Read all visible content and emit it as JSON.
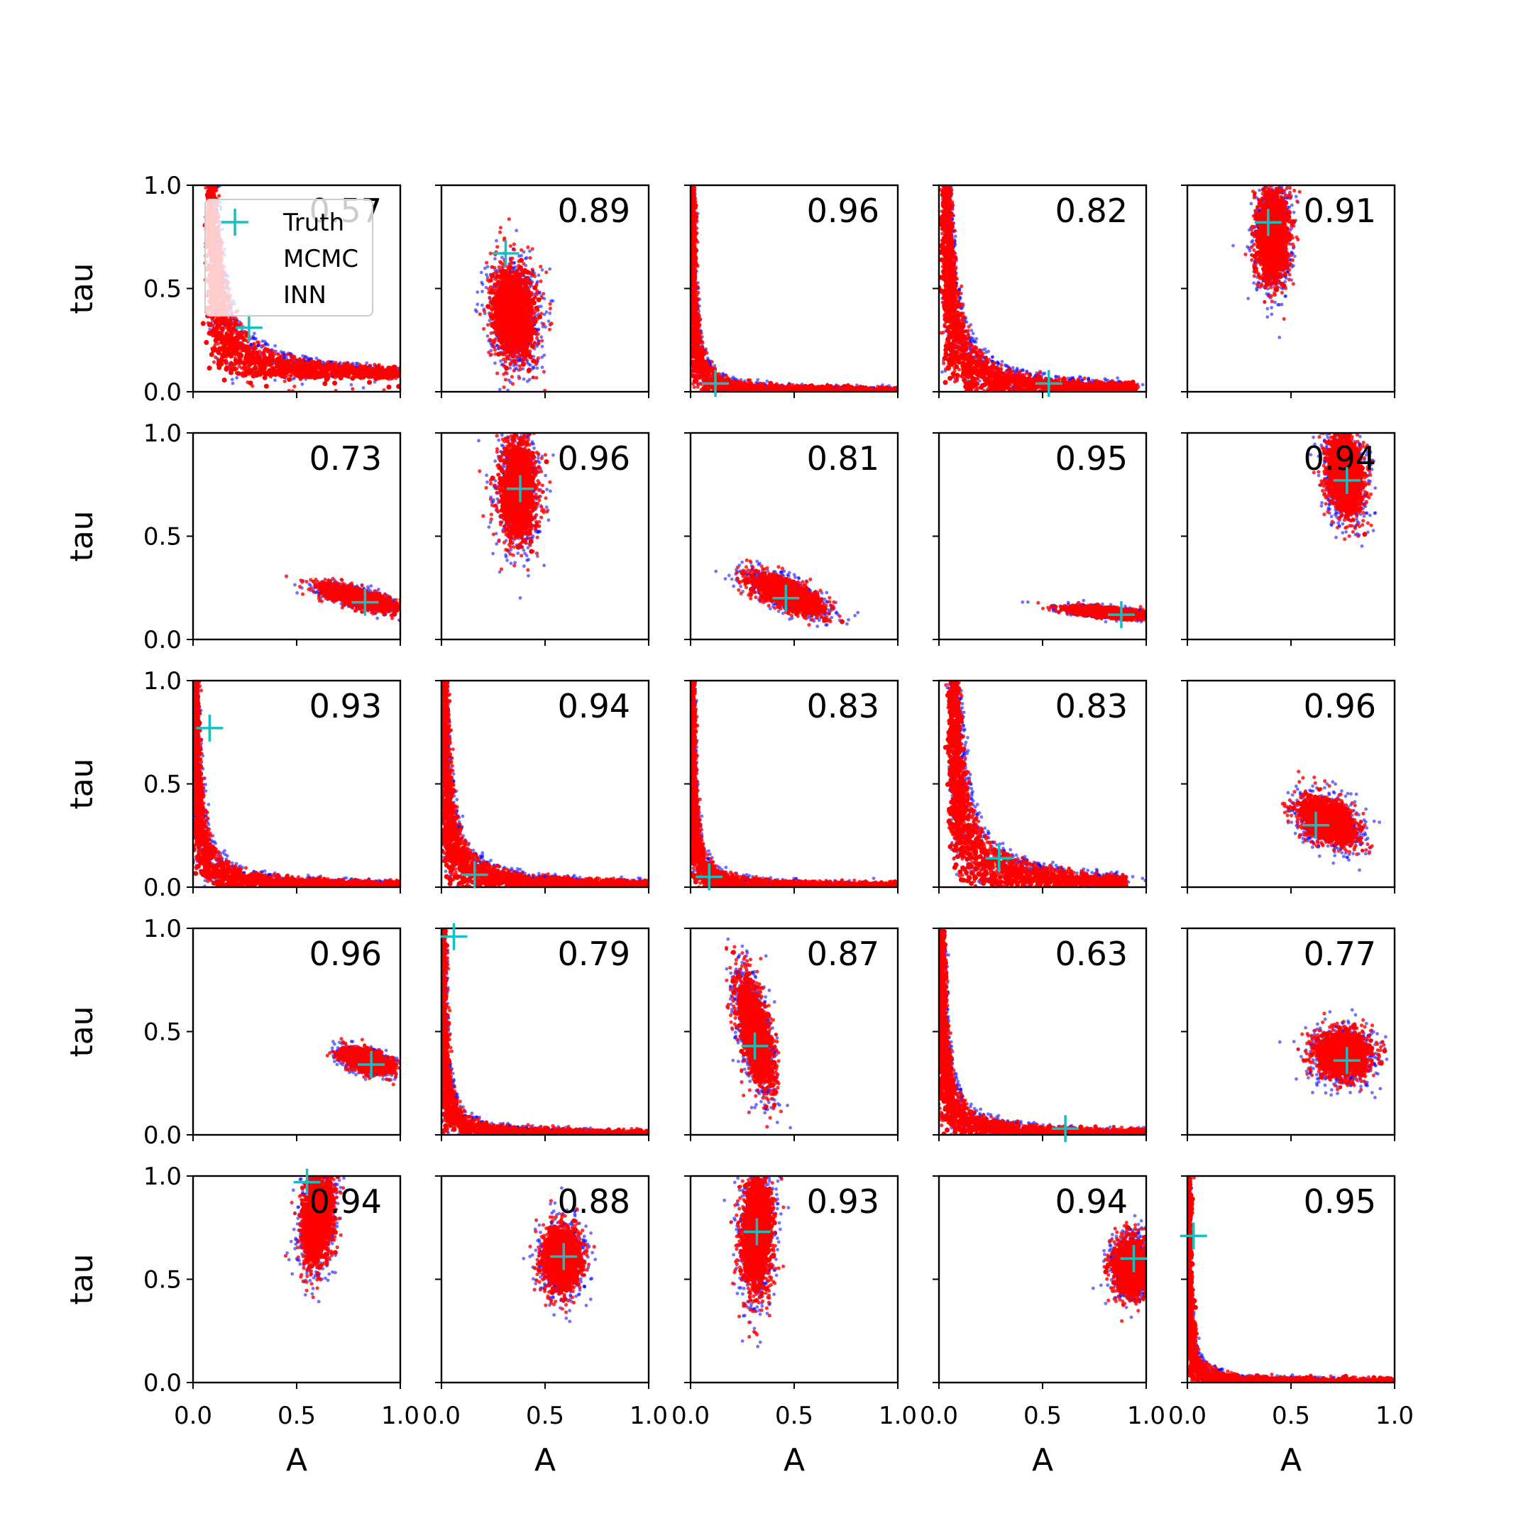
{
  "chart_data": {
    "type": "scatter",
    "layout": "5x5 grid of scatter panels",
    "xlabel": "A",
    "ylabel": "tau",
    "xlim": [
      0,
      1
    ],
    "ylim": [
      0,
      1
    ],
    "xticks": [
      "0.0",
      "0.5",
      "1.0"
    ],
    "yticks": [
      "0.0",
      "0.5",
      "1.0"
    ],
    "legend": {
      "placement": "top-left of first panel",
      "entries": [
        "Truth",
        "MCMC",
        "INN"
      ]
    },
    "colors": {
      "truth": "#17bfbf",
      "mcmc": "#0000ff",
      "inn": "#ff0000"
    },
    "panels": [
      {
        "row": 0,
        "col": 0,
        "corr": "0.57",
        "truth": [
          0.27,
          0.31
        ],
        "shape": "lcurve",
        "p": {
          "a0": 0.07,
          "b0": 0.07,
          "k": 0.04,
          "xmax": 1.0
        }
      },
      {
        "row": 0,
        "col": 1,
        "corr": "0.89",
        "truth": [
          0.31,
          0.67
        ],
        "shape": "blob",
        "p": {
          "cx": 0.35,
          "cy": 0.38,
          "sx": 0.055,
          "sy": 0.12,
          "rho": -0.1
        }
      },
      {
        "row": 0,
        "col": 2,
        "corr": "0.96",
        "truth": [
          0.12,
          0.04
        ],
        "shape": "lcurve",
        "p": {
          "a0": 0.0,
          "b0": 0.0,
          "k": 0.012,
          "xmax": 1.0
        }
      },
      {
        "row": 0,
        "col": 3,
        "corr": "0.82",
        "truth": [
          0.53,
          0.04
        ],
        "shape": "lcurve",
        "p": {
          "a0": 0.02,
          "b0": 0.0,
          "k": 0.035,
          "xmax": 0.95
        }
      },
      {
        "row": 0,
        "col": 4,
        "corr": "0.91",
        "truth": [
          0.39,
          0.82
        ],
        "shape": "blob",
        "p": {
          "cx": 0.41,
          "cy": 0.75,
          "sx": 0.04,
          "sy": 0.12,
          "rho": 0.0
        }
      },
      {
        "row": 1,
        "col": 0,
        "corr": "0.73",
        "truth": [
          0.83,
          0.18
        ],
        "shape": "blob",
        "p": {
          "cx": 0.8,
          "cy": 0.2,
          "sx": 0.09,
          "sy": 0.03,
          "rho": -0.7
        }
      },
      {
        "row": 1,
        "col": 1,
        "corr": "0.96",
        "truth": [
          0.38,
          0.73
        ],
        "shape": "blob",
        "p": {
          "cx": 0.37,
          "cy": 0.72,
          "sx": 0.045,
          "sy": 0.13,
          "rho": 0.0
        }
      },
      {
        "row": 1,
        "col": 2,
        "corr": "0.81",
        "truth": [
          0.46,
          0.2
        ],
        "shape": "blob",
        "p": {
          "cx": 0.47,
          "cy": 0.22,
          "sx": 0.09,
          "sy": 0.05,
          "rho": -0.7
        }
      },
      {
        "row": 1,
        "col": 3,
        "corr": "0.95",
        "truth": [
          0.88,
          0.12
        ],
        "shape": "blob",
        "p": {
          "cx": 0.82,
          "cy": 0.13,
          "sx": 0.1,
          "sy": 0.015,
          "rho": -0.6
        }
      },
      {
        "row": 1,
        "col": 4,
        "corr": "0.94",
        "truth": [
          0.77,
          0.77
        ],
        "shape": "blob",
        "p": {
          "cx": 0.76,
          "cy": 0.8,
          "sx": 0.045,
          "sy": 0.1,
          "rho": -0.2
        }
      },
      {
        "row": 2,
        "col": 0,
        "corr": "0.93",
        "truth": [
          0.08,
          0.77
        ],
        "shape": "lcurve",
        "p": {
          "a0": 0.0,
          "b0": 0.0,
          "k": 0.02,
          "xmax": 1.0
        }
      },
      {
        "row": 2,
        "col": 1,
        "corr": "0.94",
        "truth": [
          0.16,
          0.06
        ],
        "shape": "lcurve",
        "p": {
          "a0": 0.0,
          "b0": 0.0,
          "k": 0.025,
          "xmax": 1.0
        }
      },
      {
        "row": 2,
        "col": 2,
        "corr": "0.83",
        "truth": [
          0.09,
          0.05
        ],
        "shape": "lcurve",
        "p": {
          "a0": 0.0,
          "b0": 0.0,
          "k": 0.012,
          "xmax": 1.0
        }
      },
      {
        "row": 2,
        "col": 3,
        "corr": "0.83",
        "truth": [
          0.29,
          0.14
        ],
        "shape": "lcurve",
        "p": {
          "a0": 0.05,
          "b0": 0.0,
          "k": 0.045,
          "xmax": 0.9
        }
      },
      {
        "row": 2,
        "col": 4,
        "corr": "0.96",
        "truth": [
          0.62,
          0.3
        ],
        "shape": "blob",
        "p": {
          "cx": 0.68,
          "cy": 0.32,
          "sx": 0.07,
          "sy": 0.06,
          "rho": -0.4
        }
      },
      {
        "row": 3,
        "col": 0,
        "corr": "0.96",
        "truth": [
          0.86,
          0.34
        ],
        "shape": "blob",
        "p": {
          "cx": 0.84,
          "cy": 0.36,
          "sx": 0.06,
          "sy": 0.03,
          "rho": -0.5
        }
      },
      {
        "row": 3,
        "col": 1,
        "corr": "0.79",
        "truth": [
          0.06,
          0.96
        ],
        "shape": "lcurve",
        "p": {
          "a0": 0.0,
          "b0": 0.0,
          "k": 0.012,
          "xmax": 1.0
        }
      },
      {
        "row": 3,
        "col": 2,
        "corr": "0.87",
        "truth": [
          0.31,
          0.43
        ],
        "shape": "blob",
        "p": {
          "cx": 0.31,
          "cy": 0.5,
          "sx": 0.045,
          "sy": 0.14,
          "rho": -0.6
        }
      },
      {
        "row": 3,
        "col": 3,
        "corr": "0.63",
        "truth": [
          0.61,
          0.03
        ],
        "shape": "lcurve",
        "p": {
          "a0": 0.0,
          "b0": 0.0,
          "k": 0.02,
          "xmax": 1.0
        }
      },
      {
        "row": 3,
        "col": 4,
        "corr": "0.77",
        "truth": [
          0.77,
          0.36
        ],
        "shape": "blob",
        "p": {
          "cx": 0.75,
          "cy": 0.39,
          "sx": 0.07,
          "sy": 0.06,
          "rho": 0.0
        }
      },
      {
        "row": 4,
        "col": 0,
        "corr": "0.94",
        "truth": [
          0.55,
          0.97
        ],
        "shape": "blob",
        "p": {
          "cx": 0.6,
          "cy": 0.8,
          "sx": 0.04,
          "sy": 0.12,
          "rho": 0.2
        }
      },
      {
        "row": 4,
        "col": 1,
        "corr": "0.88",
        "truth": [
          0.59,
          0.61
        ],
        "shape": "blob",
        "p": {
          "cx": 0.58,
          "cy": 0.6,
          "sx": 0.05,
          "sy": 0.08,
          "rho": 0.0
        }
      },
      {
        "row": 4,
        "col": 2,
        "corr": "0.93",
        "truth": [
          0.32,
          0.73
        ],
        "shape": "blob",
        "p": {
          "cx": 0.32,
          "cy": 0.73,
          "sx": 0.04,
          "sy": 0.15,
          "rho": 0.1
        }
      },
      {
        "row": 4,
        "col": 3,
        "corr": "0.94",
        "truth": [
          0.94,
          0.6
        ],
        "shape": "blob",
        "p": {
          "cx": 0.93,
          "cy": 0.56,
          "sx": 0.045,
          "sy": 0.07,
          "rho": 0.0
        }
      },
      {
        "row": 4,
        "col": 4,
        "corr": "0.95",
        "truth": [
          0.03,
          0.71
        ],
        "shape": "lcurve",
        "p": {
          "a0": 0.0,
          "b0": 0.0,
          "k": 0.008,
          "xmax": 1.0
        }
      }
    ]
  }
}
